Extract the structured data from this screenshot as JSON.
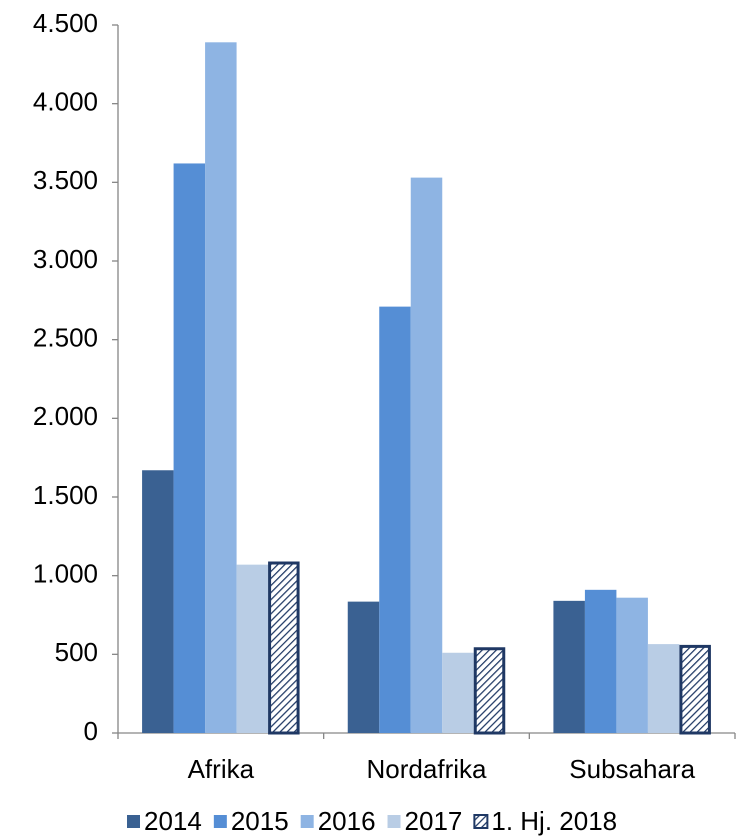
{
  "chart_data": {
    "type": "bar",
    "categories": [
      "Afrika",
      "Nordafrika",
      "Subsahara"
    ],
    "series": [
      {
        "name": "2014",
        "color": "#3a6192",
        "values": [
          1670,
          835,
          840
        ]
      },
      {
        "name": "2015",
        "color": "#558ed5",
        "values": [
          3620,
          2710,
          910
        ]
      },
      {
        "name": "2016",
        "color": "#8eb4e3",
        "values": [
          4390,
          3530,
          860
        ]
      },
      {
        "name": "2017",
        "color": "#b9cde5",
        "values": [
          1070,
          510,
          565
        ]
      },
      {
        "name": "1. Hj. 2018",
        "color": "#1f3864",
        "pattern": "hatch",
        "values": [
          1090,
          545,
          560
        ]
      }
    ],
    "ylim": [
      0,
      4500
    ],
    "yticks": [
      0,
      500,
      {
        "value": 1000,
        "label": "1.000"
      },
      {
        "value": 1500,
        "label": "1.500"
      },
      {
        "value": 2000,
        "label": "2.000"
      },
      {
        "value": 2500,
        "label": "2.500"
      },
      {
        "value": 3000,
        "label": "3.000"
      },
      {
        "value": 3500,
        "label": "3.500"
      },
      {
        "value": 4000,
        "label": "4.000"
      },
      {
        "value": 4500,
        "label": "4.500"
      }
    ],
    "grid": false,
    "legend": "bottom"
  }
}
